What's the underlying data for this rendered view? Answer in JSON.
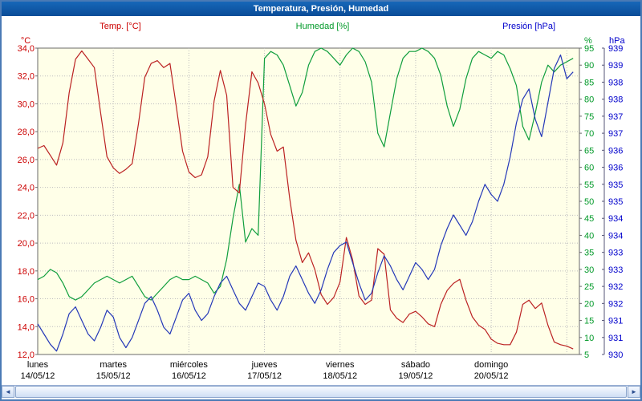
{
  "window": {
    "title": "Temperatura, Presión, Humedad"
  },
  "legend": {
    "temp": "Temp. [°C]",
    "humidity": "Humedad [%]",
    "pressure": "Presión [hPa]"
  },
  "colors": {
    "temp": "#bb2222",
    "humidity": "#0f9e3c",
    "pressure": "#2438b8",
    "temp_label": "#cc0000",
    "humidity_label": "#009928",
    "pressure_label": "#0000cc",
    "titlebar": "#0d55a7",
    "plot_bg": "#ffffe8",
    "grid": "#bdbdbd",
    "frame": "#6a6a6a",
    "border": "#4a7ab5",
    "day_label": "#000000"
  },
  "scrollbar": {
    "left_arrow": "◄",
    "right_arrow": "►"
  },
  "chart_data": {
    "type": "line",
    "title": "Temperatura, Presión, Humedad",
    "x_step_hours": 2,
    "x_domain_hours": [
      0,
      172
    ],
    "day_gridlines_hours": [
      24,
      48,
      72,
      96,
      120,
      144,
      168
    ],
    "x_axis_days": [
      {
        "name": "lunes",
        "date": "14/05/12",
        "hour": 0
      },
      {
        "name": "martes",
        "date": "15/05/12",
        "hour": 24
      },
      {
        "name": "miércoles",
        "date": "16/05/12",
        "hour": 48
      },
      {
        "name": "jueves",
        "date": "17/05/12",
        "hour": 72
      },
      {
        "name": "viernes",
        "date": "18/05/12",
        "hour": 96
      },
      {
        "name": "sábado",
        "date": "19/05/12",
        "hour": 120
      },
      {
        "name": "domingo",
        "date": "20/05/12",
        "hour": 144
      }
    ],
    "axes": {
      "temp": {
        "unit": "°C",
        "min": 12,
        "max": 34,
        "tick_step": 2,
        "tick_labels": [
          "34,0",
          "32,0",
          "30,0",
          "28,0",
          "26,0",
          "24,0",
          "22,0",
          "20,0",
          "18,0",
          "16,0",
          "14,0",
          "12,0"
        ]
      },
      "humidity": {
        "unit": "%",
        "min": 5,
        "max": 95,
        "tick_step": 5,
        "tick_labels": [
          "95",
          "90",
          "85",
          "80",
          "75",
          "70",
          "65",
          "60",
          "55",
          "50",
          "45",
          "40",
          "35",
          "30",
          "25",
          "20",
          "15",
          "10",
          "5"
        ]
      },
      "pressure": {
        "unit": "hPa",
        "min": 930.5,
        "max": 939.5,
        "tick_step": 0.5,
        "tick_labels": [
          "939",
          "939",
          "938",
          "938",
          "937",
          "937",
          "936",
          "936",
          "935",
          "935",
          "934",
          "934",
          "933",
          "933",
          "932",
          "932",
          "931",
          "931",
          "930"
        ]
      }
    },
    "series": [
      {
        "name": "Temp. [°C]",
        "axis": "temp",
        "color": "#bb2222",
        "values": [
          26.8,
          27.0,
          26.3,
          25.6,
          27.2,
          30.8,
          33.2,
          33.8,
          33.2,
          32.6,
          29.3,
          26.2,
          25.4,
          25.0,
          25.3,
          25.7,
          28.6,
          31.9,
          32.9,
          33.1,
          32.6,
          32.9,
          29.8,
          26.6,
          25.1,
          24.7,
          24.9,
          26.2,
          30.2,
          32.4,
          30.6,
          24.0,
          23.6,
          28.5,
          32.3,
          31.5,
          30.0,
          27.8,
          26.6,
          26.9,
          23.2,
          20.2,
          18.6,
          19.3,
          18.1,
          16.3,
          15.6,
          16.1,
          17.2,
          20.4,
          18.8,
          16.2,
          15.6,
          15.9,
          19.6,
          19.2,
          15.2,
          14.6,
          14.3,
          14.9,
          15.1,
          14.7,
          14.2,
          14.0,
          15.6,
          16.6,
          17.1,
          17.4,
          15.9,
          14.7,
          14.1,
          13.8,
          13.1,
          12.8,
          12.7,
          12.7,
          13.6,
          15.6,
          15.9,
          15.3,
          15.7,
          14.1,
          12.9,
          12.7,
          12.6,
          12.4
        ]
      },
      {
        "name": "Humedad [%]",
        "axis": "humidity",
        "color": "#0f9e3c",
        "values": [
          27,
          28,
          30,
          29,
          26,
          22,
          21,
          22,
          24,
          26,
          27,
          28,
          27,
          26,
          27,
          28,
          25,
          22,
          21,
          23,
          25,
          27,
          28,
          27,
          27,
          28,
          27,
          26,
          23,
          25,
          33,
          45,
          55,
          38,
          42,
          40,
          92,
          94,
          93,
          90,
          84,
          78,
          82,
          90,
          94,
          95,
          94,
          92,
          90,
          93,
          95,
          94,
          91,
          85,
          70,
          66,
          76,
          86,
          92,
          94,
          94,
          95,
          94,
          92,
          87,
          78,
          72,
          77,
          86,
          92,
          94,
          93,
          92,
          94,
          93,
          89,
          84,
          72,
          68,
          76,
          85,
          90,
          88,
          90,
          91,
          92
        ]
      },
      {
        "name": "Presión [hPa]",
        "axis": "pressure",
        "color": "#2438b8",
        "values": [
          931.4,
          931.1,
          930.8,
          930.6,
          931.1,
          931.7,
          931.9,
          931.5,
          931.1,
          930.9,
          931.3,
          931.8,
          931.6,
          931.0,
          930.7,
          931.0,
          931.5,
          932.0,
          932.2,
          931.8,
          931.3,
          931.1,
          931.6,
          932.1,
          932.3,
          931.8,
          931.5,
          931.7,
          932.2,
          932.6,
          932.8,
          932.4,
          932.0,
          931.8,
          932.2,
          932.6,
          932.5,
          932.1,
          931.8,
          932.2,
          932.8,
          933.1,
          932.7,
          932.3,
          932.0,
          932.4,
          933.0,
          933.5,
          933.7,
          933.8,
          933.2,
          932.6,
          932.1,
          932.3,
          932.9,
          933.4,
          933.1,
          932.7,
          932.4,
          932.8,
          933.2,
          933.0,
          932.7,
          933.0,
          933.7,
          934.2,
          934.6,
          934.3,
          934.0,
          934.4,
          935.0,
          935.5,
          935.2,
          935.0,
          935.5,
          936.3,
          937.3,
          938.0,
          938.3,
          937.4,
          936.9,
          937.9,
          938.9,
          939.3,
          938.6,
          938.8
        ]
      }
    ]
  }
}
